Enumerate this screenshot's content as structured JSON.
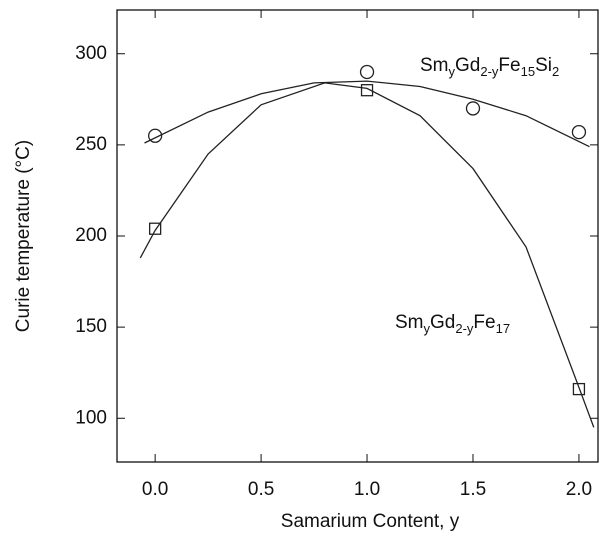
{
  "chart_data": {
    "type": "scatter",
    "x_label": "Samarium Content, y",
    "y_label": "Curie temperature (°C)",
    "xlim": [
      -0.18,
      2.09
    ],
    "ylim": [
      76,
      324
    ],
    "xticks": [
      {
        "value": 0,
        "label": "0.0"
      },
      {
        "value": 0.5,
        "label": "0.5"
      },
      {
        "value": 1,
        "label": "1.0"
      },
      {
        "value": 1.5,
        "label": "1.5"
      },
      {
        "value": 2,
        "label": "2.0"
      }
    ],
    "yticks": [
      100,
      150,
      200,
      250,
      300
    ],
    "series": [
      {
        "marker": "circle",
        "color": "#222",
        "x": [
          0,
          1,
          1.5,
          2
        ],
        "values": [
          255,
          290,
          270,
          257
        ],
        "label_parts": [
          "Sm",
          "y",
          "Gd",
          "2-y",
          "Fe",
          "15",
          "Si",
          "2"
        ],
        "fit_x": [
          -0.05,
          0.25,
          0.5,
          0.75,
          1.0,
          1.25,
          1.5,
          1.75,
          2.05
        ],
        "fit_values": [
          251,
          268,
          278,
          284,
          285,
          282,
          275,
          266,
          249
        ]
      },
      {
        "marker": "square",
        "color": "#222",
        "x": [
          0,
          1,
          2
        ],
        "values": [
          204,
          280,
          116
        ],
        "label_parts": [
          "Sm",
          "y",
          "Gd",
          "2-y",
          "Fe",
          "17"
        ],
        "fit_x": [
          -0.07,
          0,
          0.25,
          0.5,
          0.8,
          1.0,
          1.25,
          1.5,
          1.75,
          2.0,
          2.07
        ],
        "fit_values": [
          188,
          203,
          245,
          272,
          284,
          281,
          266,
          237,
          194,
          117,
          95
        ]
      }
    ]
  }
}
